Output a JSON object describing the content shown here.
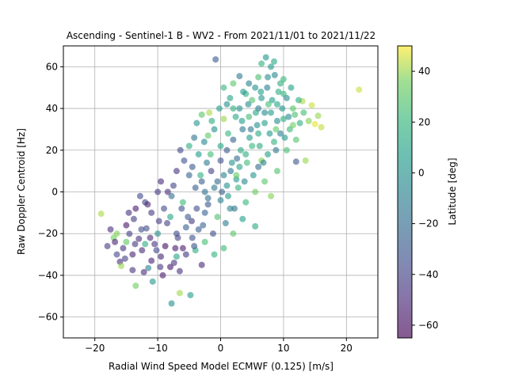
{
  "chart_data": {
    "type": "scatter",
    "title": "Ascending - Sentinel-1 B - WV2 - From 2021/11/01 to 2021/11/22",
    "xlabel": "Radial Wind Speed Model ECMWF (0.125) [m/s]",
    "ylabel": "Raw Doppler Centroid [Hz]",
    "xlim": [
      -25,
      25
    ],
    "ylim": [
      -70,
      70
    ],
    "xticks": [
      -20,
      -10,
      0,
      10,
      20
    ],
    "yticks": [
      -60,
      -40,
      -20,
      0,
      20,
      40,
      60
    ],
    "grid": true,
    "marker_alpha": 0.6,
    "colormap": "viridis",
    "colorbar": {
      "label": "Latitude [deg]",
      "range": [
        -65,
        50
      ],
      "ticks": [
        -60,
        -40,
        -20,
        0,
        20,
        40
      ]
    },
    "points": [
      {
        "x": -14.5,
        "y": -20.1,
        "lat": -42.0
      },
      {
        "x": -13.0,
        "y": -22.5,
        "lat": -48.0
      },
      {
        "x": -11.8,
        "y": -17.5,
        "lat": -37.0
      },
      {
        "x": -12.5,
        "y": -28.0,
        "lat": -50.0
      },
      {
        "x": -10.5,
        "y": -25.0,
        "lat": -45.0
      },
      {
        "x": -9.5,
        "y": -31.0,
        "lat": -52.0
      },
      {
        "x": -8.5,
        "y": -15.0,
        "lat": -40.0
      },
      {
        "x": -7.0,
        "y": -20.0,
        "lat": -35.0
      },
      {
        "x": -6.0,
        "y": -27.0,
        "lat": -55.0
      },
      {
        "x": -5.2,
        "y": -12.0,
        "lat": -30.0
      },
      {
        "x": -11.0,
        "y": -10.0,
        "lat": -44.0
      },
      {
        "x": -13.8,
        "y": -13.0,
        "lat": -41.0
      },
      {
        "x": -15.5,
        "y": -27.0,
        "lat": -46.0
      },
      {
        "x": -16.0,
        "y": -33.5,
        "lat": -49.0
      },
      {
        "x": -14.0,
        "y": -30.0,
        "lat": -53.0
      },
      {
        "x": -12.0,
        "y": -5.0,
        "lat": -38.0
      },
      {
        "x": -9.0,
        "y": -8.0,
        "lat": -36.0
      },
      {
        "x": -8.0,
        "y": -36.0,
        "lat": -57.0
      },
      {
        "x": -6.5,
        "y": -38.0,
        "lat": -47.0
      },
      {
        "x": -4.5,
        "y": -22.0,
        "lat": -33.0
      },
      {
        "x": -3.5,
        "y": -18.0,
        "lat": -28.0
      },
      {
        "x": -2.5,
        "y": -10.0,
        "lat": -25.0
      },
      {
        "x": -2.0,
        "y": -3.0,
        "lat": -20.0
      },
      {
        "x": -1.0,
        "y": 2.0,
        "lat": -15.0
      },
      {
        "x": -3.0,
        "y": 5.0,
        "lat": -26.0
      },
      {
        "x": -5.0,
        "y": 8.0,
        "lat": -24.0
      },
      {
        "x": -7.5,
        "y": 3.0,
        "lat": -39.0
      },
      {
        "x": -10.0,
        "y": 0.0,
        "lat": -43.0
      },
      {
        "x": -12.8,
        "y": -2.0,
        "lat": -37.0
      },
      {
        "x": -9.2,
        "y": -40.0,
        "lat": -55.0
      },
      {
        "x": -15.0,
        "y": -24.0,
        "lat": 32.0
      },
      {
        "x": -16.5,
        "y": -20.0,
        "lat": 38.0
      },
      {
        "x": -19.0,
        "y": -10.5,
        "lat": 42.0
      },
      {
        "x": -17.0,
        "y": -22.0,
        "lat": 36.0
      },
      {
        "x": -13.5,
        "y": -45.0,
        "lat": 35.0
      },
      {
        "x": -15.8,
        "y": -35.5,
        "lat": 40.0
      },
      {
        "x": -6.5,
        "y": -48.5,
        "lat": 41.0
      },
      {
        "x": -4.8,
        "y": -49.5,
        "lat": 5.0
      },
      {
        "x": -7.8,
        "y": -53.5,
        "lat": -2.0
      },
      {
        "x": -10.8,
        "y": -43.0,
        "lat": 2.0
      },
      {
        "x": -11.5,
        "y": -36.5,
        "lat": -8.0
      },
      {
        "x": -7.0,
        "y": -31.0,
        "lat": 10.0
      },
      {
        "x": -4.0,
        "y": -28.0,
        "lat": 15.0
      },
      {
        "x": -2.5,
        "y": -24.0,
        "lat": 25.0
      },
      {
        "x": -1.0,
        "y": -30.0,
        "lat": 18.0
      },
      {
        "x": 0.5,
        "y": -27.0,
        "lat": 22.0
      },
      {
        "x": 2.0,
        "y": -20.0,
        "lat": 30.0
      },
      {
        "x": 5.5,
        "y": -16.5,
        "lat": 12.0
      },
      {
        "x": 3.5,
        "y": -13.0,
        "lat": 8.0
      },
      {
        "x": 1.5,
        "y": -8.0,
        "lat": -5.0
      },
      {
        "x": 0.0,
        "y": -4.0,
        "lat": -10.0
      },
      {
        "x": 1.0,
        "y": 3.0,
        "lat": 0.0
      },
      {
        "x": 2.5,
        "y": 6.0,
        "lat": 5.0
      },
      {
        "x": 3.0,
        "y": 12.0,
        "lat": 10.0
      },
      {
        "x": 4.0,
        "y": 18.0,
        "lat": 15.0
      },
      {
        "x": 5.0,
        "y": 22.0,
        "lat": 20.0
      },
      {
        "x": 6.0,
        "y": 28.0,
        "lat": 12.0
      },
      {
        "x": 7.0,
        "y": 33.0,
        "lat": 8.0
      },
      {
        "x": 8.0,
        "y": 38.0,
        "lat": 5.0
      },
      {
        "x": 9.0,
        "y": 42.0,
        "lat": 10.0
      },
      {
        "x": 10.0,
        "y": 35.0,
        "lat": 15.0
      },
      {
        "x": 11.0,
        "y": 30.0,
        "lat": 22.0
      },
      {
        "x": 12.0,
        "y": 25.0,
        "lat": 28.0
      },
      {
        "x": 6.5,
        "y": 45.0,
        "lat": 3.0
      },
      {
        "x": 5.5,
        "y": 50.0,
        "lat": 0.0
      },
      {
        "x": 7.5,
        "y": 55.0,
        "lat": -2.0
      },
      {
        "x": 8.0,
        "y": 60.0,
        "lat": 5.0
      },
      {
        "x": 7.2,
        "y": 64.5,
        "lat": 2.0
      },
      {
        "x": 8.5,
        "y": 62.5,
        "lat": 12.0
      },
      {
        "x": 6.5,
        "y": 61.5,
        "lat": 18.0
      },
      {
        "x": 3.0,
        "y": 55.5,
        "lat": -12.0
      },
      {
        "x": -0.8,
        "y": 63.5,
        "lat": -30.0
      },
      {
        "x": 4.5,
        "y": 52.0,
        "lat": -8.0
      },
      {
        "x": 9.5,
        "y": 52.0,
        "lat": 15.0
      },
      {
        "x": 10.0,
        "y": 47.0,
        "lat": 20.0
      },
      {
        "x": 11.5,
        "y": 40.0,
        "lat": 30.0
      },
      {
        "x": 13.0,
        "y": 43.5,
        "lat": 42.0
      },
      {
        "x": 14.5,
        "y": 41.5,
        "lat": 45.0
      },
      {
        "x": 15.5,
        "y": 36.5,
        "lat": 40.0
      },
      {
        "x": 16.0,
        "y": 31.0,
        "lat": 44.0
      },
      {
        "x": 15.0,
        "y": 32.5,
        "lat": 48.0
      },
      {
        "x": 14.0,
        "y": 34.0,
        "lat": 38.0
      },
      {
        "x": 13.5,
        "y": 15.0,
        "lat": 40.0
      },
      {
        "x": 12.0,
        "y": 14.5,
        "lat": -30.0
      },
      {
        "x": 22.0,
        "y": 49.0,
        "lat": 45.0
      },
      {
        "x": 10.5,
        "y": 20.0,
        "lat": 25.0
      },
      {
        "x": 9.0,
        "y": 10.0,
        "lat": 28.0
      },
      {
        "x": 7.0,
        "y": 5.0,
        "lat": 30.0
      },
      {
        "x": 5.5,
        "y": 0.0,
        "lat": 35.0
      },
      {
        "x": 4.0,
        "y": -5.0,
        "lat": 20.0
      },
      {
        "x": 8.0,
        "y": -2.0,
        "lat": 38.0
      },
      {
        "x": 6.0,
        "y": 12.0,
        "lat": -20.0
      },
      {
        "x": 3.5,
        "y": 30.0,
        "lat": -15.0
      },
      {
        "x": 2.0,
        "y": 25.0,
        "lat": -25.0
      },
      {
        "x": 1.0,
        "y": 20.0,
        "lat": -30.0
      },
      {
        "x": 0.0,
        "y": 15.0,
        "lat": -35.0
      },
      {
        "x": -1.5,
        "y": 10.0,
        "lat": -40.0
      },
      {
        "x": -3.5,
        "y": 18.0,
        "lat": 5.0
      },
      {
        "x": -5.0,
        "y": 22.0,
        "lat": 15.0
      },
      {
        "x": -2.0,
        "y": 27.0,
        "lat": 32.0
      },
      {
        "x": 0.5,
        "y": 35.0,
        "lat": 40.0
      },
      {
        "x": -1.8,
        "y": 38.0,
        "lat": 42.0
      },
      {
        "x": -3.0,
        "y": 37.0,
        "lat": 30.0
      },
      {
        "x": 0.5,
        "y": 50.0,
        "lat": 20.0
      },
      {
        "x": 2.0,
        "y": 52.0,
        "lat": 30.0
      },
      {
        "x": 1.5,
        "y": 45.0,
        "lat": 10.0
      },
      {
        "x": 3.0,
        "y": 40.0,
        "lat": 0.0
      },
      {
        "x": 4.5,
        "y": 36.0,
        "lat": 25.0
      },
      {
        "x": 9.5,
        "y": 28.0,
        "lat": -10.0
      },
      {
        "x": 10.5,
        "y": 45.0,
        "lat": -5.0
      },
      {
        "x": 6.5,
        "y": 15.0,
        "lat": 38.0
      },
      {
        "x": 2.5,
        "y": 8.0,
        "lat": 33.0
      },
      {
        "x": -0.5,
        "y": -12.0,
        "lat": 28.0
      },
      {
        "x": -6.0,
        "y": -5.0,
        "lat": 22.0
      },
      {
        "x": -8.0,
        "y": -12.0,
        "lat": 10.0
      },
      {
        "x": -10.0,
        "y": -20.0,
        "lat": 0.0
      },
      {
        "x": -12.0,
        "y": -25.0,
        "lat": 15.0
      },
      {
        "x": -5.5,
        "y": -30.0,
        "lat": -45.0
      },
      {
        "x": -3.0,
        "y": -35.0,
        "lat": -50.0
      },
      {
        "x": 11.5,
        "y": 32.0,
        "lat": 35.0
      },
      {
        "x": 8.5,
        "y": 24.0,
        "lat": 18.0
      },
      {
        "x": 7.5,
        "y": 18.0,
        "lat": 8.0
      },
      {
        "x": 6.0,
        "y": 40.0,
        "lat": -12.0
      },
      {
        "x": 5.0,
        "y": 44.0,
        "lat": 28.0
      },
      {
        "x": 4.0,
        "y": 47.0,
        "lat": 16.0
      },
      {
        "x": -1.0,
        "y": 30.0,
        "lat": 0.0
      },
      {
        "x": -4.5,
        "y": 12.0,
        "lat": -30.0
      },
      {
        "x": -7.0,
        "y": 10.0,
        "lat": -45.0
      },
      {
        "x": -9.5,
        "y": 5.0,
        "lat": -50.0
      },
      {
        "x": -13.5,
        "y": -8.0,
        "lat": -55.0
      },
      {
        "x": -15.0,
        "y": -16.0,
        "lat": -58.0
      },
      {
        "x": -17.5,
        "y": -18.0,
        "lat": -48.0
      },
      {
        "x": -18.0,
        "y": -26.0,
        "lat": -42.0
      },
      {
        "x": -16.5,
        "y": -30.0,
        "lat": -38.0
      },
      {
        "x": -14.0,
        "y": -37.5,
        "lat": -46.0
      },
      {
        "x": -11.0,
        "y": -33.0,
        "lat": -53.0
      },
      {
        "x": -8.8,
        "y": -26.0,
        "lat": -60.0
      },
      {
        "x": -6.8,
        "y": -22.0,
        "lat": -40.0
      },
      {
        "x": -5.5,
        "y": -17.0,
        "lat": -25.0
      },
      {
        "x": -3.8,
        "y": -8.0,
        "lat": -35.0
      },
      {
        "x": -2.5,
        "y": 0.0,
        "lat": -18.0
      },
      {
        "x": 0.5,
        "y": 8.0,
        "lat": -8.0
      },
      {
        "x": 1.8,
        "y": 14.0,
        "lat": 2.0
      },
      {
        "x": 3.2,
        "y": 20.0,
        "lat": 12.0
      },
      {
        "x": 4.6,
        "y": 26.0,
        "lat": 6.0
      },
      {
        "x": 5.8,
        "y": 32.0,
        "lat": 0.0
      },
      {
        "x": 7.0,
        "y": 38.0,
        "lat": -4.0
      },
      {
        "x": 8.2,
        "y": 44.0,
        "lat": 6.0
      },
      {
        "x": 9.2,
        "y": 48.0,
        "lat": 14.0
      },
      {
        "x": 10.0,
        "y": 54.0,
        "lat": 20.0
      },
      {
        "x": 11.8,
        "y": 37.0,
        "lat": 26.0
      },
      {
        "x": 9.0,
        "y": 34.0,
        "lat": -2.0
      },
      {
        "x": 7.8,
        "y": 28.0,
        "lat": 4.0
      },
      {
        "x": 6.2,
        "y": 22.0,
        "lat": 14.0
      },
      {
        "x": 4.2,
        "y": 14.0,
        "lat": 24.0
      },
      {
        "x": 2.8,
        "y": 2.0,
        "lat": 18.0
      },
      {
        "x": 1.2,
        "y": -2.0,
        "lat": 6.0
      },
      {
        "x": -0.5,
        "y": 5.0,
        "lat": -22.0
      },
      {
        "x": -2.2,
        "y": 14.0,
        "lat": -12.0
      },
      {
        "x": -4.0,
        "y": 2.0,
        "lat": -28.0
      },
      {
        "x": -6.2,
        "y": -8.0,
        "lat": -33.0
      },
      {
        "x": -7.8,
        "y": -2.0,
        "lat": -20.0
      },
      {
        "x": -9.8,
        "y": -14.0,
        "lat": -42.0
      },
      {
        "x": -11.2,
        "y": -22.0,
        "lat": -50.0
      },
      {
        "x": -12.6,
        "y": -18.0,
        "lat": -35.0
      },
      {
        "x": -13.6,
        "y": -25.0,
        "lat": -44.0
      },
      {
        "x": -10.2,
        "y": -28.0,
        "lat": -38.0
      },
      {
        "x": -7.4,
        "y": -34.0,
        "lat": -46.0
      },
      {
        "x": -4.2,
        "y": -26.0,
        "lat": -32.0
      },
      {
        "x": -2.8,
        "y": -16.0,
        "lat": -24.0
      },
      {
        "x": -1.2,
        "y": -20.0,
        "lat": -36.0
      },
      {
        "x": 0.8,
        "y": -15.0,
        "lat": -10.0
      },
      {
        "x": 2.2,
        "y": -8.0,
        "lat": -18.0
      },
      {
        "x": 3.8,
        "y": 5.0,
        "lat": -6.0
      },
      {
        "x": 5.2,
        "y": 8.0,
        "lat": 2.0
      },
      {
        "x": 6.8,
        "y": 14.0,
        "lat": -8.0
      },
      {
        "x": 8.8,
        "y": 20.0,
        "lat": -14.0
      },
      {
        "x": 10.2,
        "y": 26.0,
        "lat": 4.0
      },
      {
        "x": 12.6,
        "y": 33.0,
        "lat": 16.0
      },
      {
        "x": 13.2,
        "y": 38.0,
        "lat": 24.0
      },
      {
        "x": 11.2,
        "y": 50.0,
        "lat": 8.0
      },
      {
        "x": 8.6,
        "y": 56.0,
        "lat": -6.0
      },
      {
        "x": 6.0,
        "y": 55.0,
        "lat": 26.0
      },
      {
        "x": 3.6,
        "y": 48.0,
        "lat": 4.0
      },
      {
        "x": 2.4,
        "y": 36.0,
        "lat": 12.0
      },
      {
        "x": 1.2,
        "y": 28.0,
        "lat": 20.0
      },
      {
        "x": 0.0,
        "y": 22.0,
        "lat": 10.0
      },
      {
        "x": -1.6,
        "y": 18.0,
        "lat": 24.0
      },
      {
        "x": -3.2,
        "y": 8.0,
        "lat": 16.0
      },
      {
        "x": -5.8,
        "y": 15.0,
        "lat": -32.0
      },
      {
        "x": -8.4,
        "y": 0.0,
        "lat": -48.0
      },
      {
        "x": -11.6,
        "y": -6.0,
        "lat": -52.0
      },
      {
        "x": -14.6,
        "y": -10.0,
        "lat": -46.0
      },
      {
        "x": -16.8,
        "y": -24.0,
        "lat": -52.0
      },
      {
        "x": -15.2,
        "y": -32.0,
        "lat": -40.0
      },
      {
        "x": -12.2,
        "y": -38.5,
        "lat": -50.0
      },
      {
        "x": -9.6,
        "y": -36.0,
        "lat": -44.0
      },
      {
        "x": -7.2,
        "y": -27.0,
        "lat": -56.0
      },
      {
        "x": -4.6,
        "y": -14.0,
        "lat": -42.0
      },
      {
        "x": -2.0,
        "y": -6.0,
        "lat": -30.0
      },
      {
        "x": 0.2,
        "y": 0.0,
        "lat": -26.0
      },
      {
        "x": 1.6,
        "y": 10.0,
        "lat": -16.0
      },
      {
        "x": 2.6,
        "y": 16.0,
        "lat": -22.0
      },
      {
        "x": 4.8,
        "y": 30.0,
        "lat": -14.0
      },
      {
        "x": 5.6,
        "y": 38.0,
        "lat": 10.0
      },
      {
        "x": 7.6,
        "y": 42.0,
        "lat": 24.0
      },
      {
        "x": 8.8,
        "y": 30.0,
        "lat": 32.0
      },
      {
        "x": 9.8,
        "y": 40.0,
        "lat": 2.0
      },
      {
        "x": 10.8,
        "y": 36.0,
        "lat": -4.0
      },
      {
        "x": 12.4,
        "y": 44.0,
        "lat": 14.0
      },
      {
        "x": 7.4,
        "y": 50.0,
        "lat": -10.0
      },
      {
        "x": 6.4,
        "y": 48.0,
        "lat": 6.0
      },
      {
        "x": 4.4,
        "y": 42.0,
        "lat": -4.0
      },
      {
        "x": 3.4,
        "y": 34.0,
        "lat": 6.0
      },
      {
        "x": 2.0,
        "y": 40.0,
        "lat": 18.0
      },
      {
        "x": 1.0,
        "y": 42.0,
        "lat": -2.0
      },
      {
        "x": -0.2,
        "y": 40.0,
        "lat": 8.0
      },
      {
        "x": -1.4,
        "y": 34.0,
        "lat": 14.0
      },
      {
        "x": -2.6,
        "y": 24.0,
        "lat": -6.0
      },
      {
        "x": -4.2,
        "y": 26.0,
        "lat": -16.0
      },
      {
        "x": -6.4,
        "y": 20.0,
        "lat": -38.0
      },
      {
        "x": -3.8,
        "y": 33.0,
        "lat": 4.0
      }
    ]
  }
}
